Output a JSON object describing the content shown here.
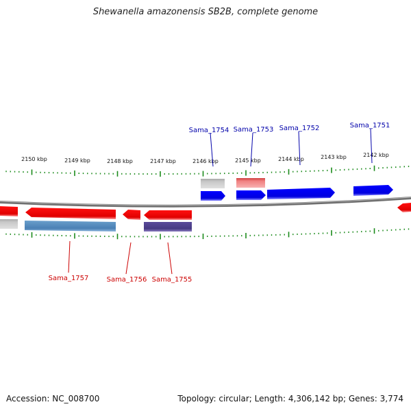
{
  "title": "Shewanella amazonensis SB2B, complete genome",
  "footer": {
    "accession": "Accession: NC_008700",
    "summary": "Topology: circular; Length: 4,306,142 bp; Genes: 3,774"
  },
  "ticks": [
    "2150 kbp",
    "2149 kbp",
    "2148 kbp",
    "2147 kbp",
    "2146 kbp",
    "2145 kbp",
    "2144 kbp",
    "2143 kbp",
    "2142 kbp"
  ],
  "labels_top": [
    "Sama_1754",
    "Sama_1753",
    "Sama_1752",
    "Sama_1751"
  ],
  "labels_bottom": [
    "Sama_1757",
    "Sama_1756",
    "Sama_1755"
  ],
  "colors": {
    "forward_gene": "#0000ee",
    "reverse_gene": "#ee0000",
    "backbone": "#888888",
    "tick": "#1a8a1a",
    "label_top": "#0000aa",
    "label_bottom": "#cc0000"
  }
}
